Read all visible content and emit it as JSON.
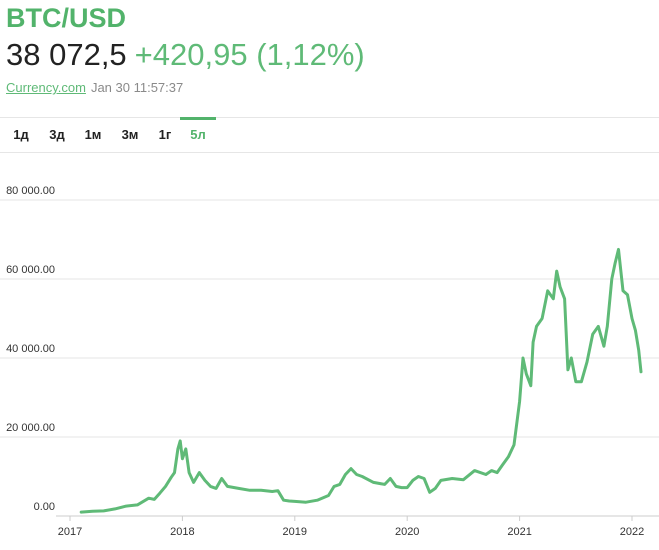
{
  "header": {
    "symbol": "BTC/USD",
    "price": "38 072,5",
    "change": "+420,95 (1,12%)",
    "source": "Currency.com",
    "timestamp": "Jan 30 11:57:37"
  },
  "tabs": [
    "1д",
    "3д",
    "1м",
    "3м",
    "1г",
    "5л"
  ],
  "active_tab": "5л",
  "colors": {
    "accent": "#52b36b",
    "line": "#5fba77",
    "grid": "#e6e6e6",
    "text": "#222222",
    "muted": "#8a8a8a"
  },
  "chart_data": {
    "type": "line",
    "title": "",
    "xlabel": "",
    "ylabel": "",
    "xlim": [
      2016.9,
      2022.15
    ],
    "ylim": [
      0,
      80000
    ],
    "y_ticks": [
      0,
      20000,
      40000,
      60000,
      80000
    ],
    "y_tick_labels": [
      "0.00",
      "20 000.00",
      "40 000.00",
      "60 000.00",
      "80 000.00"
    ],
    "x_ticks": [
      2017,
      2018,
      2019,
      2020,
      2021,
      2022
    ],
    "x_tick_labels": [
      "2017",
      "2018",
      "2019",
      "2020",
      "2021",
      "2022"
    ],
    "grid": true,
    "series": [
      {
        "name": "",
        "x": [
          2017.1,
          2017.2,
          2017.3,
          2017.4,
          2017.5,
          2017.6,
          2017.7,
          2017.75,
          2017.8,
          2017.85,
          2017.9,
          2017.93,
          2017.96,
          2017.98,
          2018.0,
          2018.03,
          2018.06,
          2018.1,
          2018.15,
          2018.2,
          2018.25,
          2018.3,
          2018.35,
          2018.4,
          2018.5,
          2018.6,
          2018.7,
          2018.8,
          2018.85,
          2018.9,
          2018.95,
          2019.0,
          2019.1,
          2019.2,
          2019.3,
          2019.35,
          2019.4,
          2019.45,
          2019.5,
          2019.55,
          2019.6,
          2019.7,
          2019.8,
          2019.85,
          2019.9,
          2019.95,
          2020.0,
          2020.05,
          2020.1,
          2020.15,
          2020.2,
          2020.25,
          2020.3,
          2020.4,
          2020.5,
          2020.6,
          2020.7,
          2020.75,
          2020.8,
          2020.85,
          2020.9,
          2020.95,
          2021.0,
          2021.03,
          2021.06,
          2021.1,
          2021.12,
          2021.15,
          2021.2,
          2021.25,
          2021.3,
          2021.33,
          2021.36,
          2021.4,
          2021.43,
          2021.46,
          2021.5,
          2021.55,
          2021.6,
          2021.65,
          2021.7,
          2021.75,
          2021.78,
          2021.82,
          2021.85,
          2021.88,
          2021.92,
          2021.96,
          2022.0,
          2022.03,
          2022.06,
          2022.08
        ],
        "values": [
          1000,
          1200,
          1300,
          1800,
          2500,
          2800,
          4500,
          4200,
          5800,
          7500,
          9800,
          11000,
          17000,
          19000,
          14500,
          17000,
          11000,
          8500,
          11000,
          9000,
          7500,
          7000,
          9500,
          7500,
          7000,
          6500,
          6500,
          6200,
          6400,
          4000,
          3800,
          3700,
          3500,
          4000,
          5200,
          7500,
          8000,
          10500,
          12000,
          10500,
          10000,
          8500,
          8000,
          9500,
          7500,
          7200,
          7200,
          9000,
          10000,
          9500,
          6000,
          7000,
          9000,
          9500,
          9200,
          11500,
          10500,
          11500,
          11000,
          13000,
          15000,
          18000,
          29000,
          40000,
          36000,
          33000,
          44000,
          48000,
          50000,
          57000,
          55000,
          62000,
          58000,
          55000,
          37000,
          40000,
          34000,
          34000,
          39000,
          46000,
          48000,
          43000,
          48000,
          60000,
          64000,
          67500,
          57000,
          56000,
          50000,
          47000,
          42000,
          36500
        ]
      }
    ]
  }
}
